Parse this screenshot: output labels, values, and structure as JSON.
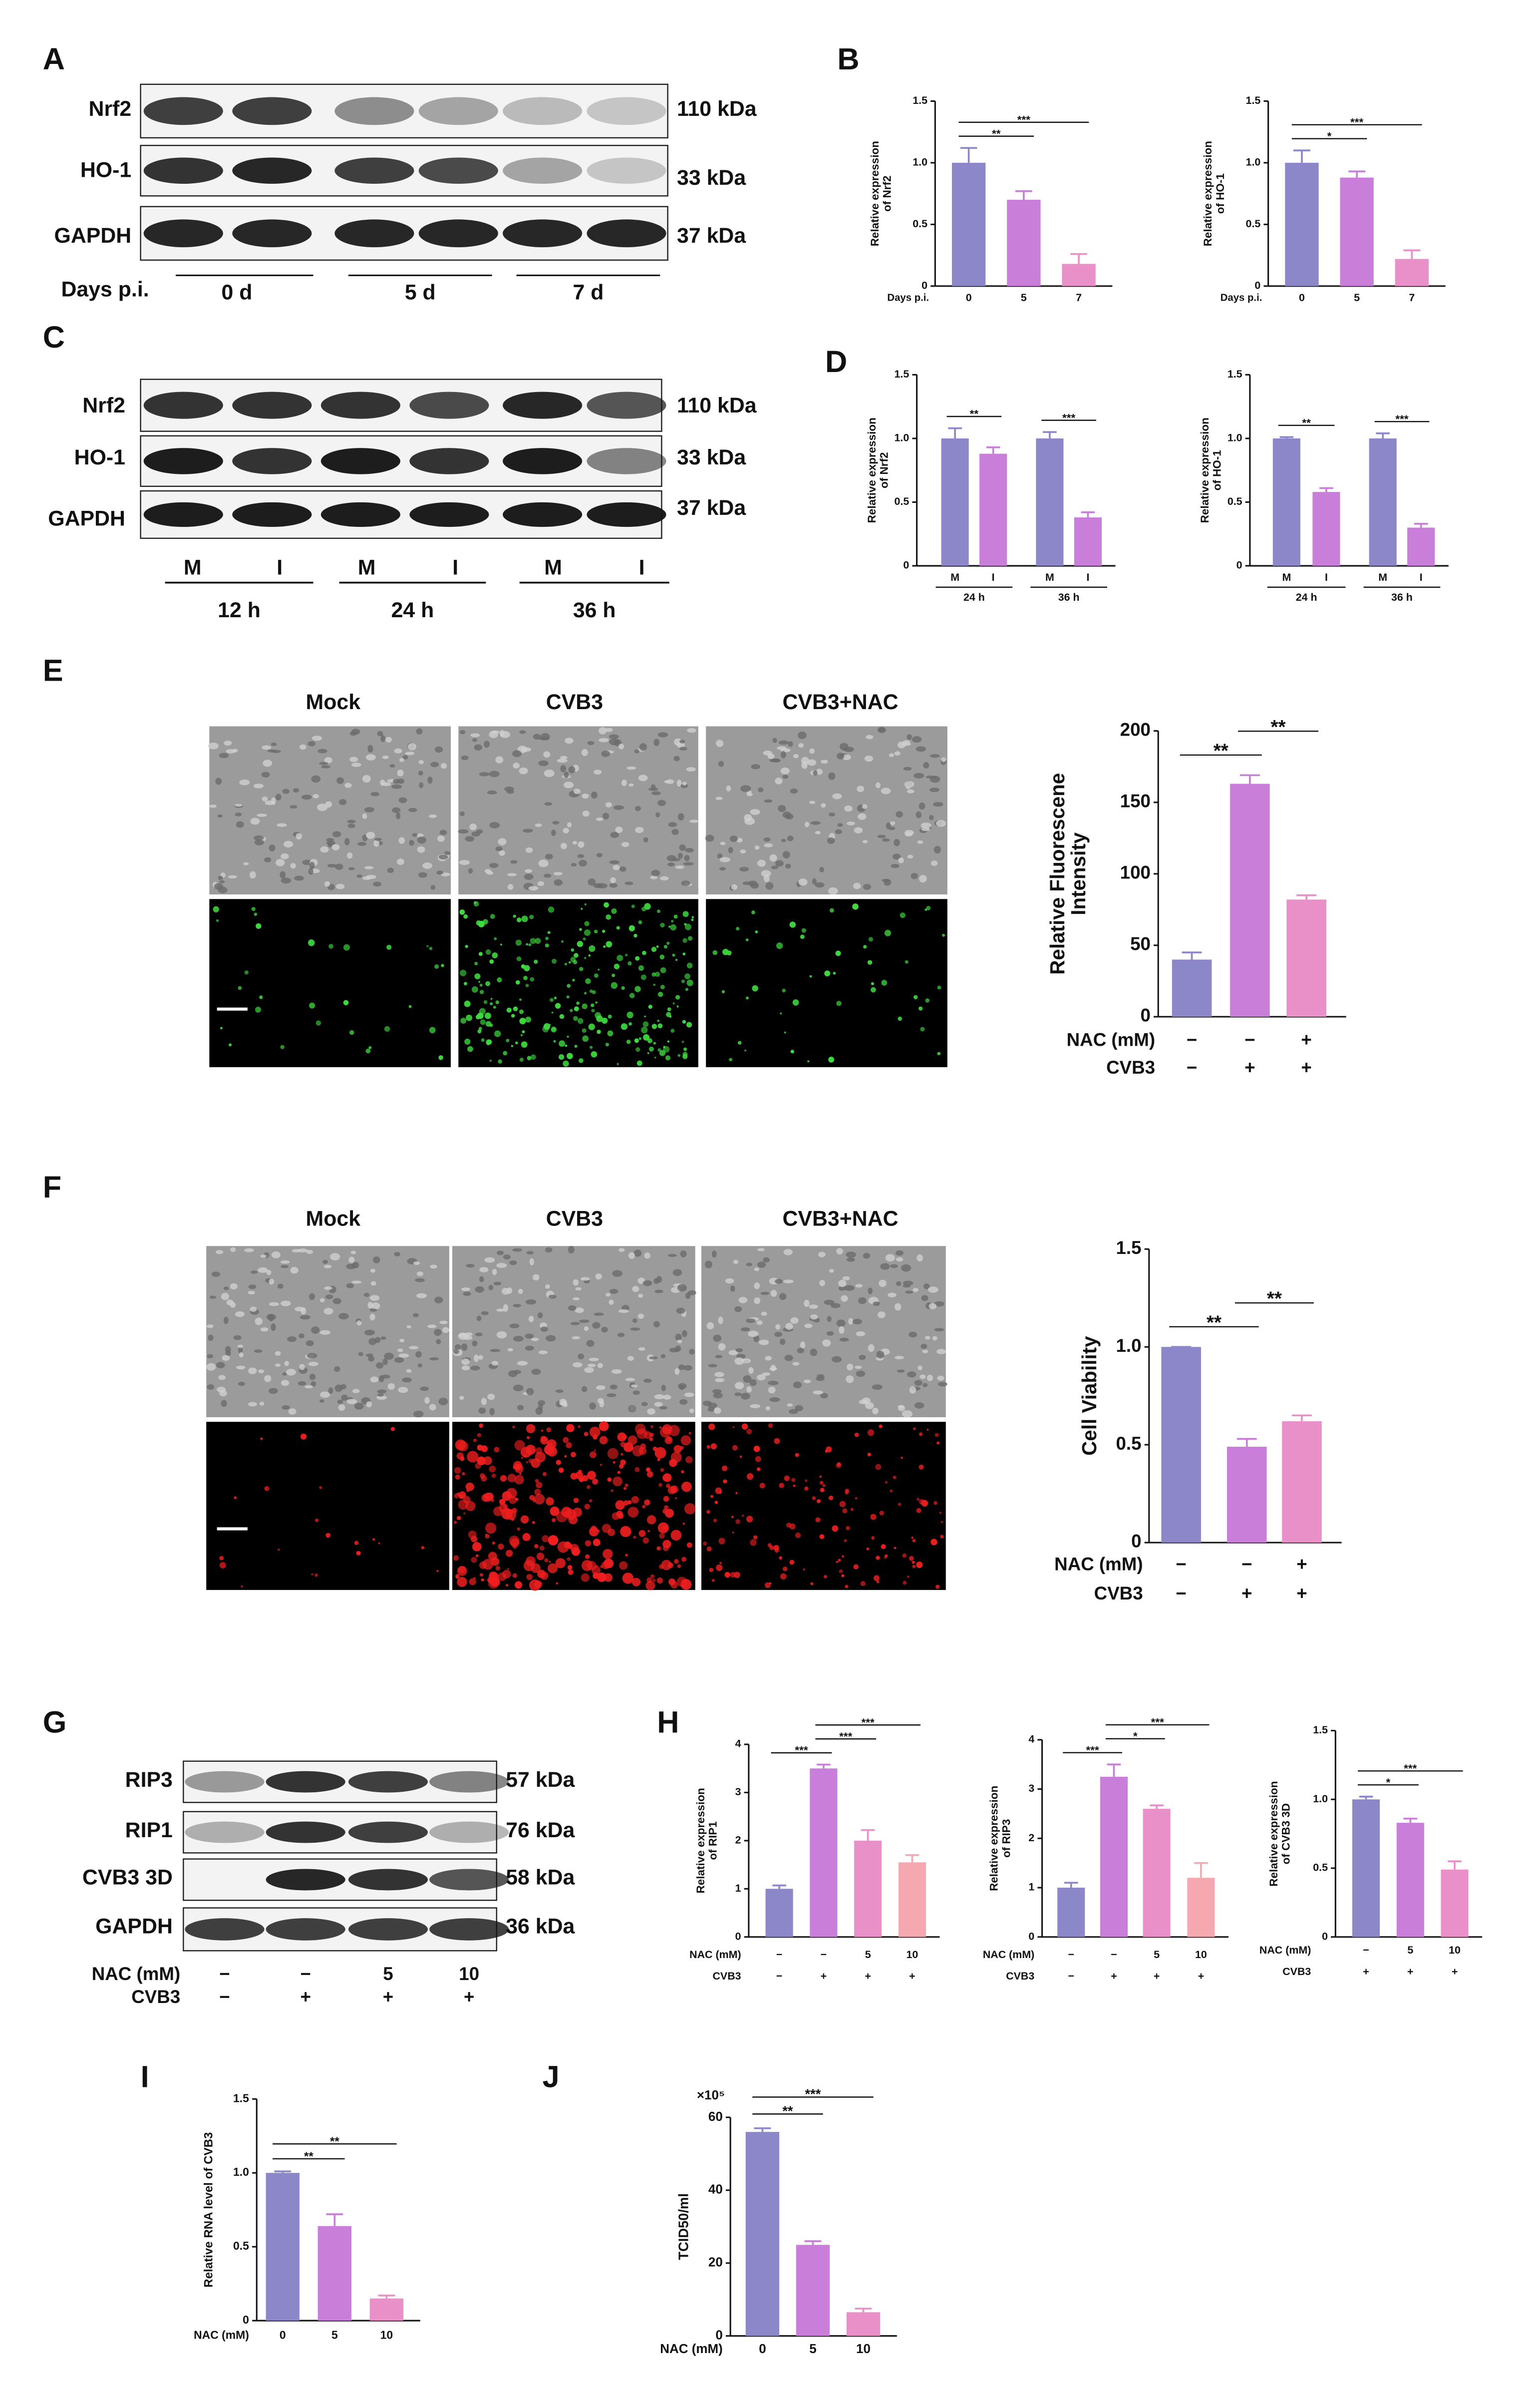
{
  "panel_letters": [
    "A",
    "B",
    "C",
    "D",
    "E",
    "F",
    "G",
    "H",
    "I",
    "J"
  ],
  "blot_A": {
    "rows": [
      {
        "label": "Nrf2",
        "size": "110 kDa"
      },
      {
        "label": "HO-1",
        "size": "33 kDa"
      },
      {
        "label": "GAPDH",
        "size": "37 kDa"
      }
    ],
    "x_label": "Days p.i.",
    "groups": [
      "0 d",
      "5 d",
      "7 d"
    ]
  },
  "blot_C": {
    "rows": [
      {
        "label": "Nrf2",
        "size": "110 kDa"
      },
      {
        "label": "HO-1",
        "size": "33 kDa"
      },
      {
        "label": "GAPDH",
        "size": "37 kDa"
      }
    ],
    "lanes": [
      "M",
      "I",
      "M",
      "I",
      "M",
      "I"
    ],
    "groups": [
      "12 h",
      "24 h",
      "36 h"
    ]
  },
  "images_E": {
    "columns": [
      "Mock",
      "CVB3",
      "CVB3+NAC"
    ]
  },
  "images_F": {
    "columns": [
      "Mock",
      "CVB3",
      "CVB3+NAC"
    ]
  },
  "blot_G": {
    "rows": [
      {
        "label": "RIP3",
        "size": "57 kDa"
      },
      {
        "label": "RIP1",
        "size": "76 kDa"
      },
      {
        "label": "CVB3 3D",
        "size": "58 kDa"
      },
      {
        "label": "GAPDH",
        "size": "36 kDa"
      }
    ],
    "treatments": [
      {
        "label": "NAC (mM)",
        "values": [
          "−",
          "−",
          "5",
          "10"
        ]
      },
      {
        "label": "CVB3",
        "values": [
          "−",
          "+",
          "+",
          "+"
        ]
      }
    ]
  },
  "chart_data": [
    {
      "type": "bar",
      "y_label": [
        "Relative expression",
        "of Nrf2"
      ],
      "x_label": "Days p.i.",
      "categories": [
        "0",
        "5",
        "7"
      ],
      "values": [
        1.0,
        0.7,
        0.18
      ],
      "errors": [
        0.12,
        0.07,
        0.08
      ],
      "colors": [
        "#8b87c9",
        "#c97fd9",
        "#ea90c9"
      ],
      "ylim": [
        0,
        1.5
      ],
      "yticks": [
        0,
        0.5,
        {
          "value": 1,
          "label": "1.0"
        },
        1.5
      ],
      "significance": [
        {
          "from": 0,
          "to": 1,
          "label": "**"
        },
        {
          "from": 0,
          "to": 2,
          "label": "***"
        }
      ]
    },
    {
      "type": "bar",
      "y_label": [
        "Relative expression",
        "of HO-1"
      ],
      "x_label": "Days p.i.",
      "categories": [
        "0",
        "5",
        "7"
      ],
      "values": [
        1.0,
        0.88,
        0.22
      ],
      "errors": [
        0.1,
        0.05,
        0.07
      ],
      "colors": [
        "#8b87c9",
        "#c97fd9",
        "#ea90c9"
      ],
      "ylim": [
        0,
        1.5
      ],
      "yticks": [
        0,
        0.5,
        {
          "value": 1,
          "label": "1.0"
        },
        1.5
      ],
      "significance": [
        {
          "from": 0,
          "to": 1,
          "label": "*"
        },
        {
          "from": 0,
          "to": 2,
          "label": "***"
        }
      ]
    },
    {
      "type": "bar",
      "y_label": [
        "Relative expression",
        "of Nrf2"
      ],
      "categories": [
        "M",
        "I",
        "M",
        "I"
      ],
      "groups": [
        "24 h",
        "36 h"
      ],
      "values": [
        1.0,
        0.88,
        1.0,
        0.38
      ],
      "errors": [
        0.08,
        0.05,
        0.05,
        0.04
      ],
      "colors": [
        "#8b87c9",
        "#c97fd9",
        "#8b87c9",
        "#c97fd9"
      ],
      "ylim": [
        0,
        1.5
      ],
      "yticks": [
        0,
        0.5,
        {
          "value": 1,
          "label": "1.0"
        },
        1.5
      ],
      "significance": [
        {
          "from": 0,
          "to": 1,
          "label": "**"
        },
        {
          "from": 2,
          "to": 3,
          "label": "***"
        }
      ]
    },
    {
      "type": "bar",
      "y_label": [
        "Relative expression",
        "of HO-1"
      ],
      "categories": [
        "M",
        "I",
        "M",
        "I"
      ],
      "groups": [
        "24 h",
        "36 h"
      ],
      "values": [
        1.0,
        0.58,
        1.0,
        0.3
      ],
      "errors": [
        0.01,
        0.03,
        0.04,
        0.03
      ],
      "colors": [
        "#8b87c9",
        "#c97fd9",
        "#8b87c9",
        "#c97fd9"
      ],
      "ylim": [
        0,
        1.5
      ],
      "yticks": [
        0,
        0.5,
        {
          "value": 1,
          "label": "1.0"
        },
        1.5
      ],
      "significance": [
        {
          "from": 0,
          "to": 1,
          "label": "**"
        },
        {
          "from": 2,
          "to": 3,
          "label": "***"
        }
      ]
    },
    {
      "type": "bar",
      "y_label": [
        "Relative Fluorescene",
        "Intensity"
      ],
      "treatments": [
        {
          "label": "NAC (mM)",
          "values": [
            "−",
            "−",
            "+"
          ]
        },
        {
          "label": "CVB3",
          "values": [
            "−",
            "+",
            "+"
          ]
        }
      ],
      "values": [
        40,
        163,
        82
      ],
      "errors": [
        5,
        6,
        3
      ],
      "colors": [
        "#8b87c9",
        "#c97fd9",
        "#ea90c9"
      ],
      "ylim": [
        0,
        200
      ],
      "yticks": [
        0,
        50,
        100,
        150,
        200
      ],
      "significance": [
        {
          "from": 0,
          "to": 1,
          "label": "**"
        },
        {
          "from": 1,
          "to": 2,
          "label": "**"
        }
      ]
    },
    {
      "type": "bar",
      "y_label": [
        "Cell Viability"
      ],
      "treatments": [
        {
          "label": "NAC (mM)",
          "values": [
            "−",
            "−",
            "+"
          ]
        },
        {
          "label": "CVB3",
          "values": [
            "−",
            "+",
            "+"
          ]
        }
      ],
      "values": [
        1.0,
        0.49,
        0.62
      ],
      "errors": [
        0,
        0.04,
        0.03
      ],
      "colors": [
        "#8b87c9",
        "#c97fd9",
        "#ea90c9"
      ],
      "ylim": [
        0,
        1.5
      ],
      "yticks": [
        0,
        0.5,
        {
          "value": 1,
          "label": "1.0"
        },
        1.5
      ],
      "significance": [
        {
          "from": 0,
          "to": 1,
          "label": "**"
        },
        {
          "from": 1,
          "to": 2,
          "label": "**"
        }
      ]
    },
    {
      "type": "bar",
      "y_label": [
        "Relative expression",
        "of RIP1"
      ],
      "treatments": [
        {
          "label": "NAC (mM)",
          "values": [
            "−",
            "−",
            "5",
            "10"
          ]
        },
        {
          "label": "CVB3",
          "values": [
            "−",
            "+",
            "+",
            "+"
          ]
        }
      ],
      "values": [
        1.0,
        3.5,
        2.0,
        1.55
      ],
      "errors": [
        0.07,
        0.08,
        0.22,
        0.15
      ],
      "colors": [
        "#8b87c9",
        "#c97fd9",
        "#ea90c9",
        "#f5a8b0"
      ],
      "ylim": [
        0,
        4
      ],
      "yticks": [
        0,
        1,
        2,
        3,
        4
      ],
      "significance": [
        {
          "from": 0,
          "to": 1,
          "label": "***"
        },
        {
          "from": 1,
          "to": 2,
          "label": "***"
        },
        {
          "from": 1,
          "to": 3,
          "label": "***"
        }
      ]
    },
    {
      "type": "bar",
      "y_label": [
        "Relative expression",
        "of RIP3"
      ],
      "treatments": [
        {
          "label": "NAC (mM)",
          "values": [
            "−",
            "−",
            "5",
            "10"
          ]
        },
        {
          "label": "CVB3",
          "values": [
            "−",
            "+",
            "+",
            "+"
          ]
        }
      ],
      "values": [
        1.0,
        3.25,
        2.6,
        1.2
      ],
      "errors": [
        0.1,
        0.25,
        0.07,
        0.3
      ],
      "colors": [
        "#8b87c9",
        "#c97fd9",
        "#ea90c9",
        "#f5a8b0"
      ],
      "ylim": [
        0,
        4
      ],
      "yticks": [
        0,
        1,
        2,
        3,
        4
      ],
      "significance": [
        {
          "from": 0,
          "to": 1,
          "label": "***"
        },
        {
          "from": 1,
          "to": 2,
          "label": "*"
        },
        {
          "from": 1,
          "to": 3,
          "label": "***"
        }
      ]
    },
    {
      "type": "bar",
      "y_label": [
        "Relative expression",
        "of CVB3 3D"
      ],
      "treatments": [
        {
          "label": "NAC (mM)",
          "values": [
            "−",
            "5",
            "10"
          ]
        },
        {
          "label": "CVB3",
          "values": [
            "+",
            "+",
            "+"
          ]
        }
      ],
      "values": [
        1.0,
        0.83,
        0.49
      ],
      "errors": [
        0.02,
        0.03,
        0.06
      ],
      "colors": [
        "#8b87c9",
        "#c97fd9",
        "#ea90c9"
      ],
      "ylim": [
        0,
        1.5
      ],
      "yticks": [
        0,
        0.5,
        {
          "value": 1,
          "label": "1.0"
        },
        1.5
      ],
      "significance": [
        {
          "from": 0,
          "to": 1,
          "label": "*"
        },
        {
          "from": 0,
          "to": 2,
          "label": "***"
        }
      ]
    },
    {
      "type": "bar",
      "y_label": [
        "Relative RNA level of CVB3"
      ],
      "treatments": [
        {
          "label": "NAC (mM)",
          "values": [
            "0",
            "5",
            "10"
          ]
        }
      ],
      "values": [
        1.0,
        0.64,
        0.15
      ],
      "errors": [
        0.01,
        0.08,
        0.02
      ],
      "colors": [
        "#8b87c9",
        "#c97fd9",
        "#ea90c9"
      ],
      "ylim": [
        0,
        1.5
      ],
      "yticks": [
        0,
        0.5,
        {
          "value": 1,
          "label": "1.0"
        },
        1.5
      ],
      "significance": [
        {
          "from": 0,
          "to": 1,
          "label": "**"
        },
        {
          "from": 0,
          "to": 2,
          "label": "**"
        }
      ]
    },
    {
      "type": "bar",
      "y_label": [
        "TCID50/ml"
      ],
      "y_unit": "×10⁵",
      "treatments": [
        {
          "label": "NAC (mM)",
          "values": [
            "0",
            "5",
            "10"
          ]
        }
      ],
      "values": [
        56,
        25,
        6.5
      ],
      "errors": [
        1,
        1,
        1
      ],
      "colors": [
        "#8b87c9",
        "#c97fd9",
        "#ea90c9"
      ],
      "ylim": [
        0,
        60
      ],
      "yticks": [
        0,
        20,
        40,
        60
      ],
      "significance": [
        {
          "from": 0,
          "to": 1,
          "label": "**"
        },
        {
          "from": 0,
          "to": 2,
          "label": "***"
        }
      ]
    }
  ]
}
